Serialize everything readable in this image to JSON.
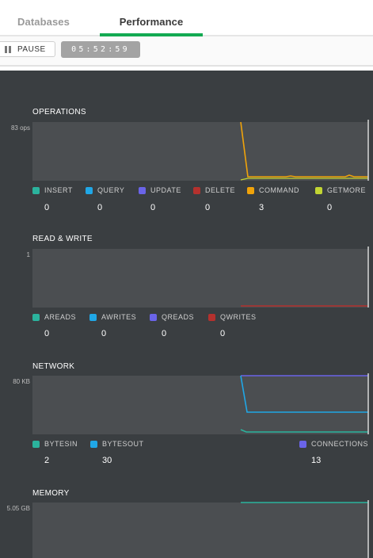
{
  "tabs": {
    "databases": "Databases",
    "performance": "Performance"
  },
  "toolbar": {
    "pause_label": "PAUSE",
    "clock": "05:52:59"
  },
  "colors": {
    "insert": "#2bb39d",
    "query": "#20a7e6",
    "update": "#6a64e8",
    "delete": "#b4312e",
    "command": "#f0a30a",
    "getmore": "#c2d533",
    "accent": "#13aa52"
  },
  "operations": {
    "title": "OPERATIONS",
    "ymax": "83 ops",
    "legend": [
      {
        "label": "INSERT",
        "value": "0",
        "color": "#2bb39d"
      },
      {
        "label": "QUERY",
        "value": "0",
        "color": "#20a7e6"
      },
      {
        "label": "UPDATE",
        "value": "0",
        "color": "#6a64e8"
      },
      {
        "label": "DELETE",
        "value": "0",
        "color": "#b4312e"
      },
      {
        "label": "COMMAND",
        "value": "3",
        "color": "#f0a30a"
      },
      {
        "label": "GETMORE",
        "value": "0",
        "color": "#c2d533"
      }
    ]
  },
  "readwrite": {
    "title": "READ & WRITE",
    "ymax": "1",
    "legend": [
      {
        "label": "AREADS",
        "value": "0",
        "color": "#2bb39d"
      },
      {
        "label": "AWRITES",
        "value": "0",
        "color": "#20a7e6"
      },
      {
        "label": "QREADS",
        "value": "0",
        "color": "#6a64e8"
      },
      {
        "label": "QWRITES",
        "value": "0",
        "color": "#b4312e"
      }
    ]
  },
  "network": {
    "title": "NETWORK",
    "ymax": "80 KB",
    "legend": [
      {
        "label": "BYTESIN",
        "value": "2",
        "color": "#2bb39d"
      },
      {
        "label": "BYTESOUT",
        "value": "30",
        "color": "#20a7e6"
      },
      {
        "label": "CONNECTIONS",
        "value": "13",
        "color": "#6a64e8"
      }
    ]
  },
  "memory": {
    "title": "MEMORY",
    "ymax": "5.05 GB"
  }
}
